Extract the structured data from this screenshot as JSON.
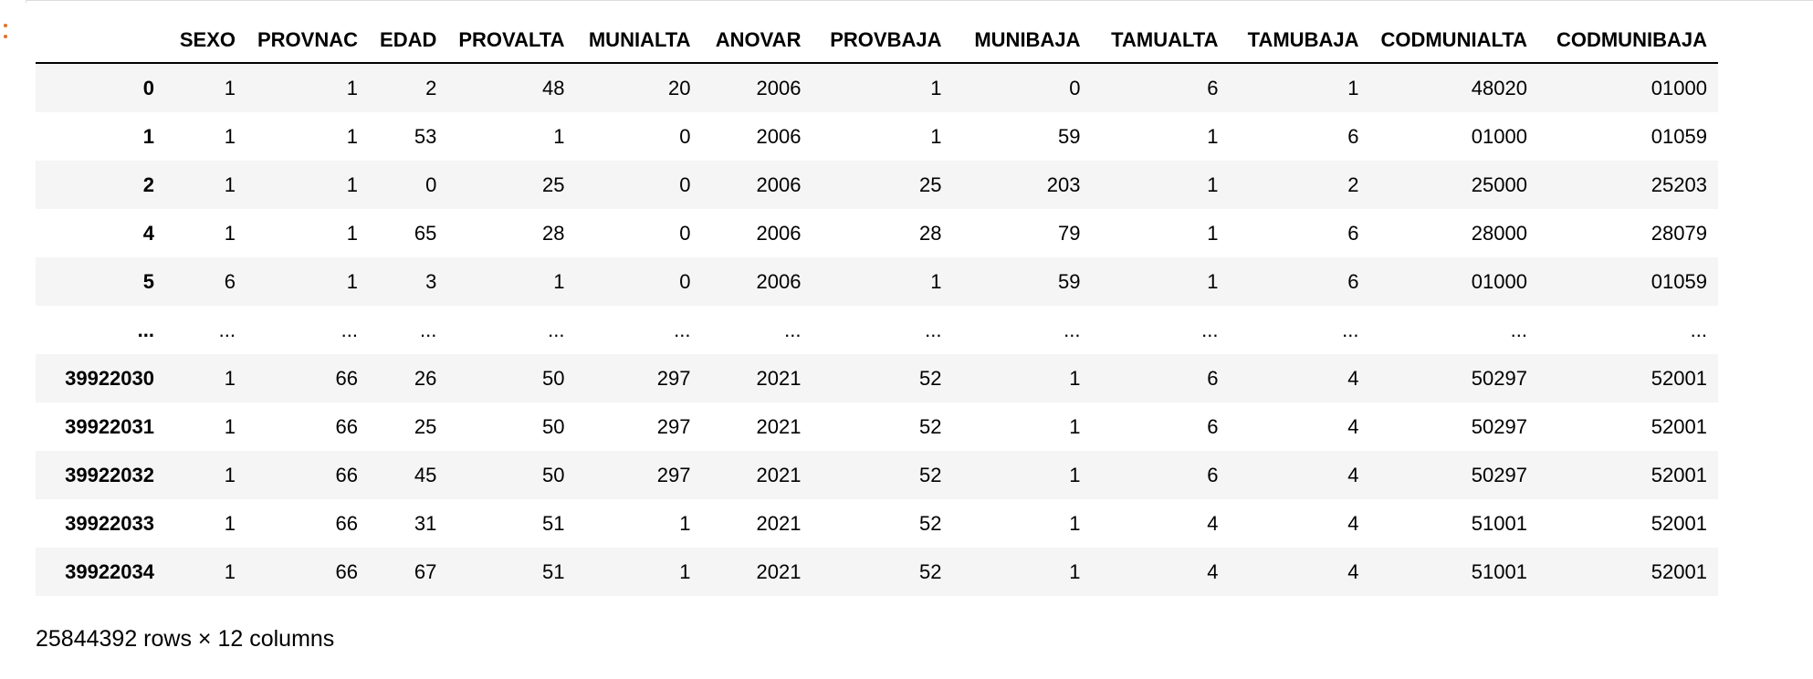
{
  "table": {
    "index_header": "",
    "columns": [
      "SEXO",
      "PROVNAC",
      "EDAD",
      "PROVALTA",
      "MUNIALTA",
      "ANOVAR",
      "PROVBAJA",
      "MUNIBAJA",
      "TAMUALTA",
      "TAMUBAJA",
      "CODMUNIALTA",
      "CODMUNIBAJA"
    ],
    "rows": [
      {
        "index": "0",
        "cells": [
          "1",
          "1",
          "2",
          "48",
          "20",
          "2006",
          "1",
          "0",
          "6",
          "1",
          "48020",
          "01000"
        ]
      },
      {
        "index": "1",
        "cells": [
          "1",
          "1",
          "53",
          "1",
          "0",
          "2006",
          "1",
          "59",
          "1",
          "6",
          "01000",
          "01059"
        ]
      },
      {
        "index": "2",
        "cells": [
          "1",
          "1",
          "0",
          "25",
          "0",
          "2006",
          "25",
          "203",
          "1",
          "2",
          "25000",
          "25203"
        ]
      },
      {
        "index": "4",
        "cells": [
          "1",
          "1",
          "65",
          "28",
          "0",
          "2006",
          "28",
          "79",
          "1",
          "6",
          "28000",
          "28079"
        ]
      },
      {
        "index": "5",
        "cells": [
          "6",
          "1",
          "3",
          "1",
          "0",
          "2006",
          "1",
          "59",
          "1",
          "6",
          "01000",
          "01059"
        ]
      },
      {
        "index": "...",
        "cells": [
          "...",
          "...",
          "...",
          "...",
          "...",
          "...",
          "...",
          "...",
          "...",
          "...",
          "...",
          "..."
        ],
        "ellipsis": true
      },
      {
        "index": "39922030",
        "cells": [
          "1",
          "66",
          "26",
          "50",
          "297",
          "2021",
          "52",
          "1",
          "6",
          "4",
          "50297",
          "52001"
        ]
      },
      {
        "index": "39922031",
        "cells": [
          "1",
          "66",
          "25",
          "50",
          "297",
          "2021",
          "52",
          "1",
          "6",
          "4",
          "50297",
          "52001"
        ]
      },
      {
        "index": "39922032",
        "cells": [
          "1",
          "66",
          "45",
          "50",
          "297",
          "2021",
          "52",
          "1",
          "6",
          "4",
          "50297",
          "52001"
        ]
      },
      {
        "index": "39922033",
        "cells": [
          "1",
          "66",
          "31",
          "51",
          "1",
          "2021",
          "52",
          "1",
          "4",
          "4",
          "51001",
          "52001"
        ]
      },
      {
        "index": "39922034",
        "cells": [
          "1",
          "66",
          "67",
          "51",
          "1",
          "2021",
          "52",
          "1",
          "4",
          "4",
          "51001",
          "52001"
        ]
      }
    ]
  },
  "shape": "25844392 rows × 12 columns",
  "colors": {
    "menu_accent": "#e0722c",
    "stripe": "#f5f5f5"
  },
  "icons": {
    "cell_menu": "vertical-dots-icon"
  }
}
